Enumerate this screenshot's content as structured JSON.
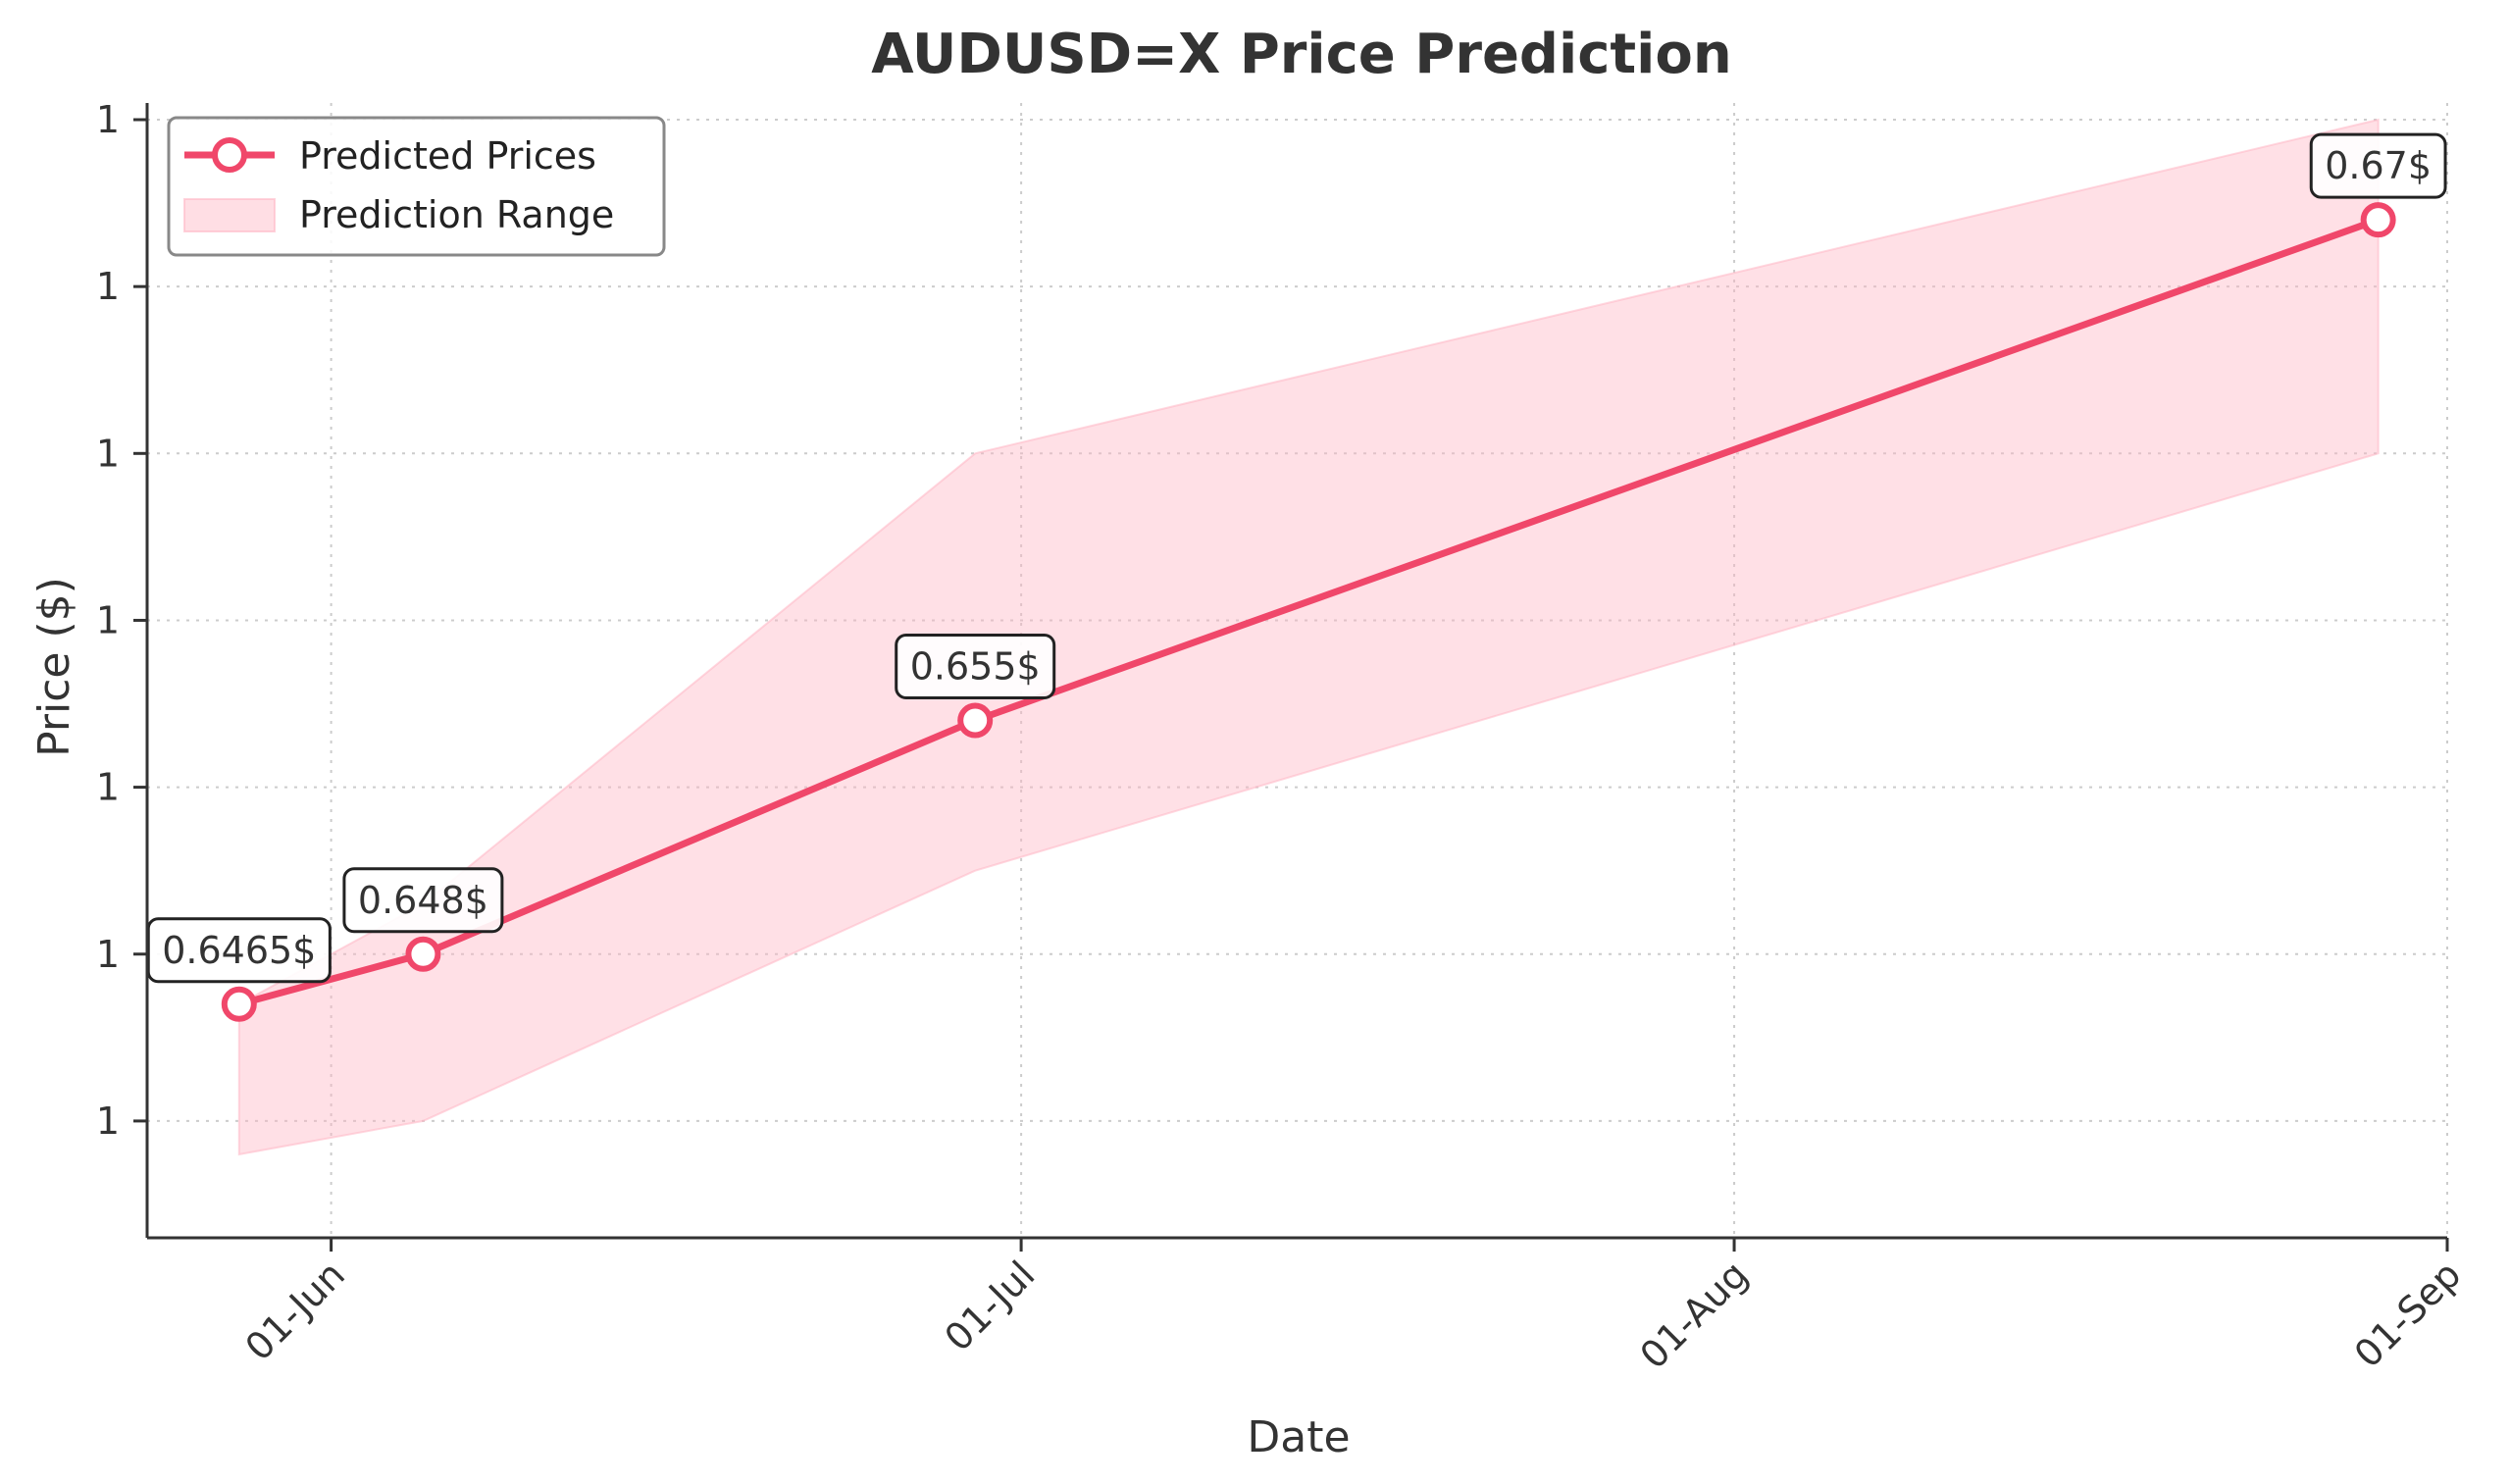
{
  "chart_data": {
    "type": "line",
    "title": "AUDUSD=X Price Prediction",
    "xlabel": "Date",
    "ylabel": "Price ($)",
    "x_axis": {
      "type": "date",
      "range": [
        "2024-05-24",
        "2024-09-01"
      ]
    },
    "x_ticks": [
      {
        "date": "2024-06-01",
        "label": "01-Jun"
      },
      {
        "date": "2024-07-01",
        "label": "01-Jul"
      },
      {
        "date": "2024-08-01",
        "label": "01-Aug"
      },
      {
        "date": "2024-09-01",
        "label": "01-Sep"
      }
    ],
    "ylim": [
      0.6395,
      0.6735
    ],
    "y_ticks": [
      {
        "value": 0.643,
        "label": "1"
      },
      {
        "value": 0.648,
        "label": "1"
      },
      {
        "value": 0.653,
        "label": "1"
      },
      {
        "value": 0.658,
        "label": "1"
      },
      {
        "value": 0.663,
        "label": "1"
      },
      {
        "value": 0.668,
        "label": "1"
      },
      {
        "value": 0.673,
        "label": "1"
      }
    ],
    "grid": true,
    "legend_placement": "top-left",
    "series": [
      {
        "name": "Predicted Prices",
        "color": "#f0476a",
        "x": [
          "2024-05-28",
          "2024-06-05",
          "2024-06-29",
          "2024-08-29"
        ],
        "values": [
          0.6465,
          0.648,
          0.655,
          0.67
        ]
      }
    ],
    "band": {
      "name": "Prediction Range",
      "color": "#ffb6c4",
      "x": [
        "2024-05-28",
        "2024-06-05",
        "2024-06-29",
        "2024-08-29"
      ],
      "lower": [
        0.642,
        0.643,
        0.6505,
        0.663
      ],
      "upper": [
        0.6465,
        0.6495,
        0.663,
        0.673
      ]
    },
    "annotations": [
      {
        "x": "2024-05-28",
        "y": 0.6465,
        "text": "0.6465$"
      },
      {
        "x": "2024-06-05",
        "y": 0.648,
        "text": "0.648$"
      },
      {
        "x": "2024-06-29",
        "y": 0.655,
        "text": "0.655$"
      },
      {
        "x": "2024-08-29",
        "y": 0.67,
        "text": "0.67$"
      }
    ]
  }
}
